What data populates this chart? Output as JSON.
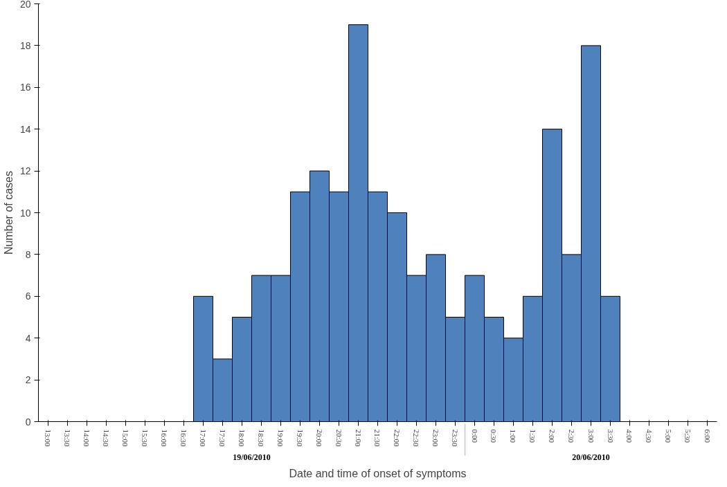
{
  "chart_data": {
    "type": "bar",
    "xlabel": "Date and time of onset of symptoms",
    "ylabel": "Number of cases",
    "categories": [
      "13:00",
      "13:30",
      "14:00",
      "14:30",
      "15:00",
      "15:30",
      "16:00",
      "16:30",
      "17:00",
      "17:30",
      "18:00",
      "18:30",
      "19:00",
      "19:30",
      "20:00",
      "20:30",
      "21:00",
      "21:30",
      "22:00",
      "22:30",
      "23:00",
      "23:30",
      "0:00",
      "0:30",
      "1:00",
      "1:30",
      "2:00",
      "2:30",
      "3:00",
      "3:30",
      "4:00",
      "4:30",
      "5:00",
      "5:30",
      "6:00"
    ],
    "values": [
      0,
      0,
      0,
      0,
      0,
      0,
      0,
      0,
      6,
      3,
      5,
      7,
      7,
      11,
      12,
      11,
      19,
      11,
      10,
      7,
      8,
      5,
      7,
      5,
      4,
      6,
      14,
      8,
      18,
      6,
      0,
      0,
      0,
      0,
      0
    ],
    "color": "#4f81bd",
    "ylim": [
      0,
      20
    ],
    "yticks": [
      0,
      2,
      4,
      6,
      8,
      10,
      12,
      14,
      16,
      18,
      20
    ],
    "grid": false,
    "annotations": [
      "19/06/2010",
      "20/06/2010"
    ]
  }
}
